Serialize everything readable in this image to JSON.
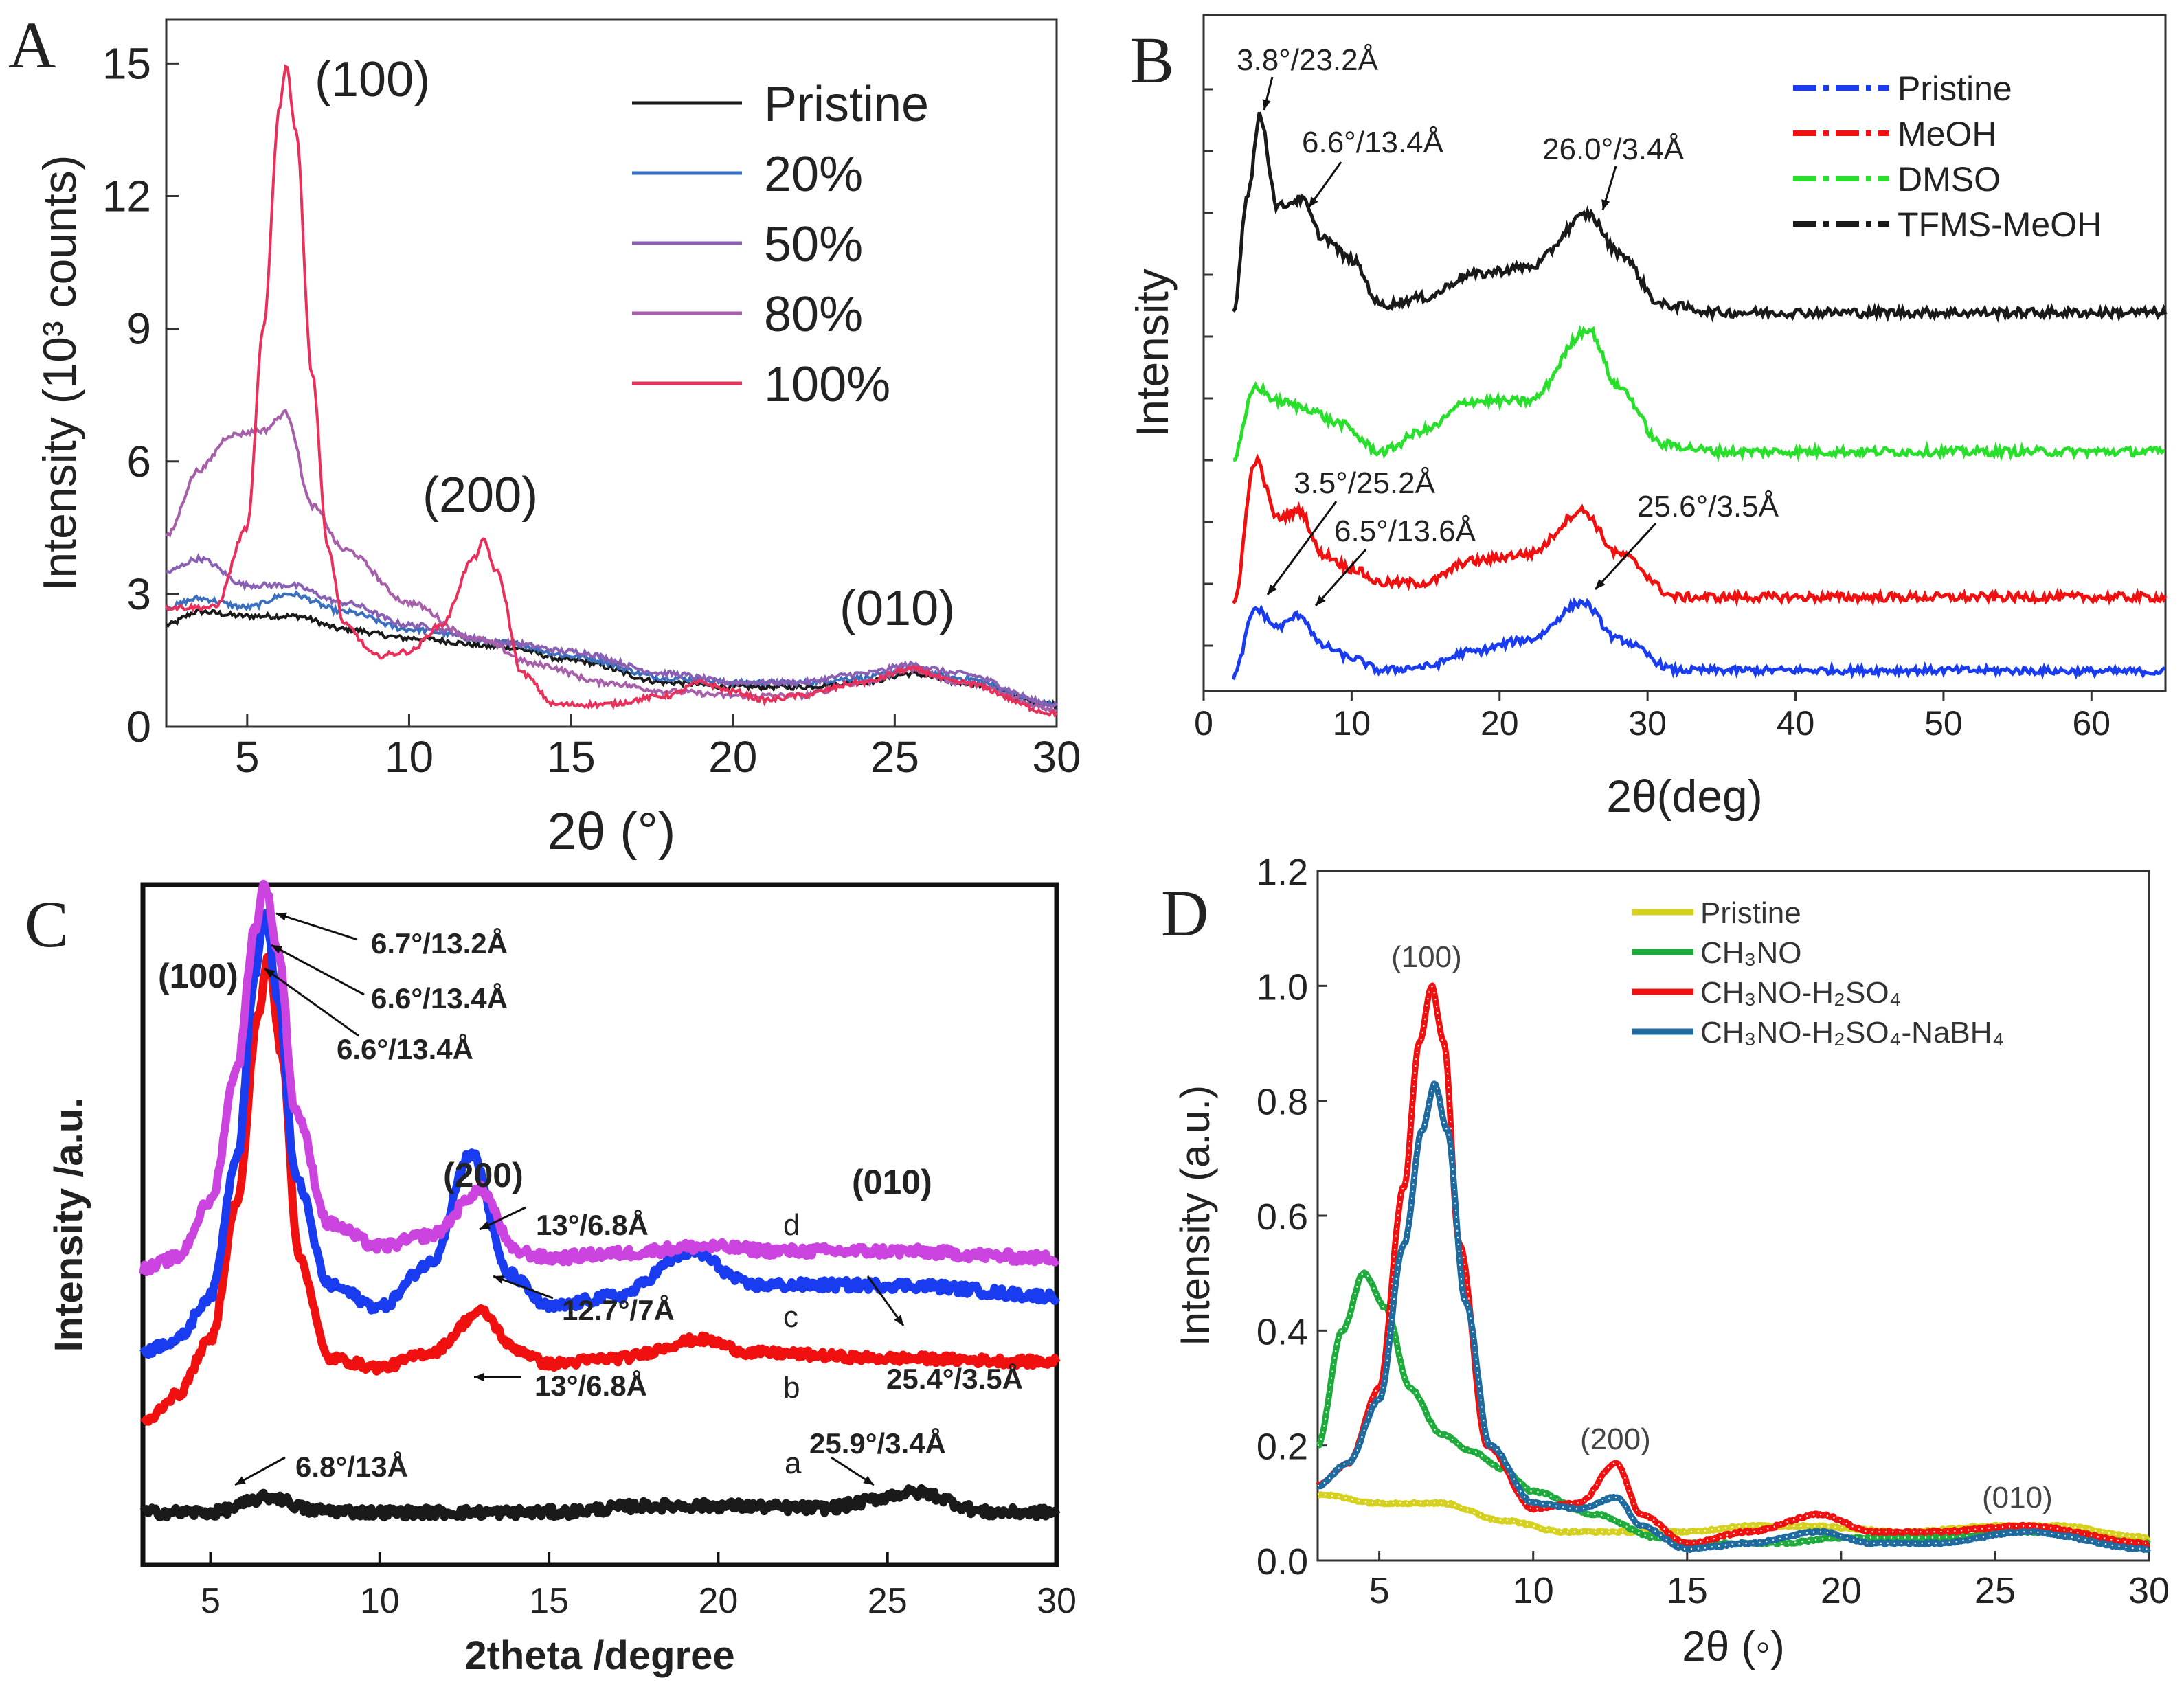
{
  "figure": {
    "panels": [
      "A",
      "B",
      "C",
      "D"
    ],
    "colors": {
      "black": "#1a1a1a",
      "blue20": "#3a6fbf",
      "purple50": "#8a60b4",
      "purple80": "#a65fa8",
      "pink100": "#e8305a",
      "blue": "#1a3cf0",
      "red": "#f01010",
      "green": "#28e02c",
      "magenta": "#cc44e0",
      "olive": "#d6d11e",
      "dgreen": "#1eab3c",
      "dblue": "#1f6ba0"
    }
  },
  "chart_data": [
    {
      "panel": "A",
      "type": "line",
      "xlabel": "2θ (°)",
      "ylabel": "Intensity (10³ counts)",
      "xlim": [
        2.5,
        30
      ],
      "ylim": [
        0,
        16
      ],
      "xticks": [
        5,
        10,
        15,
        20,
        25,
        30
      ],
      "yticks": [
        0,
        3,
        6,
        9,
        12,
        15
      ],
      "legend": [
        "Pristine",
        "20%",
        "50%",
        "80%",
        "100%"
      ],
      "annotations": [
        "(100)",
        "(200)",
        "(010)"
      ],
      "series": [
        {
          "name": "Pristine",
          "color": "black",
          "x": [
            2.5,
            3.5,
            5,
            6.5,
            8,
            10,
            13,
            15,
            18,
            20,
            22,
            24,
            25.5,
            27,
            30
          ],
          "y": [
            2.3,
            2.6,
            2.5,
            2.5,
            2.2,
            2.0,
            1.8,
            1.5,
            1.0,
            0.9,
            0.9,
            1.0,
            1.2,
            1.0,
            0.5
          ]
        },
        {
          "name": "20%",
          "color": "blue20",
          "x": [
            2.5,
            3.5,
            5,
            6.3,
            8,
            10,
            13,
            15,
            18,
            20,
            22,
            24,
            25.5,
            27,
            30
          ],
          "y": [
            2.7,
            2.9,
            2.7,
            3.0,
            2.6,
            2.2,
            1.9,
            1.6,
            1.1,
            1.0,
            1.0,
            1.1,
            1.3,
            1.1,
            0.5
          ]
        },
        {
          "name": "50%",
          "color": "purple50",
          "x": [
            2.5,
            3.5,
            5,
            6.3,
            8,
            10,
            13,
            15,
            18,
            20,
            22,
            24,
            25.5,
            27,
            30
          ],
          "y": [
            3.5,
            3.8,
            3.2,
            3.2,
            2.8,
            2.3,
            1.9,
            1.7,
            1.2,
            1.0,
            1.0,
            1.2,
            1.4,
            1.2,
            0.5
          ]
        },
        {
          "name": "80%",
          "color": "purple80",
          "x": [
            2.5,
            3.5,
            4.5,
            5.5,
            6.2,
            7,
            8,
            10,
            12,
            14,
            16,
            18,
            20,
            22,
            24,
            25.5,
            27,
            30
          ],
          "y": [
            4.3,
            5.8,
            6.6,
            6.7,
            7.1,
            5.0,
            4.0,
            2.8,
            2.0,
            1.4,
            1.0,
            0.8,
            0.7,
            0.7,
            1.0,
            1.3,
            1.0,
            0.4
          ]
        },
        {
          "name": "100%",
          "color": "pink100",
          "x": [
            2.5,
            4,
            5,
            5.5,
            6,
            6.2,
            6.5,
            7,
            7.5,
            8,
            9,
            10,
            11,
            12,
            12.3,
            12.7,
            13.5,
            14.5,
            16,
            18,
            19,
            20,
            21,
            22,
            24,
            25.5,
            27,
            30
          ],
          "y": [
            2.7,
            2.7,
            4.5,
            9.0,
            14.0,
            15.0,
            13.5,
            8.0,
            4.0,
            2.3,
            1.6,
            1.7,
            2.3,
            3.8,
            4.2,
            3.5,
            1.2,
            0.5,
            0.5,
            0.7,
            1.0,
            0.8,
            0.6,
            0.7,
            1.0,
            1.3,
            1.0,
            0.3
          ]
        }
      ]
    },
    {
      "panel": "B",
      "type": "line",
      "xlabel": "2θ(deg)",
      "ylabel": "Intensity",
      "xlim": [
        0,
        65
      ],
      "xticks": [
        0,
        10,
        20,
        30,
        40,
        50,
        60
      ],
      "legend": [
        "Pristine",
        "MeOH",
        "DMSO",
        "TFMS-MeOH"
      ],
      "annotations": [
        "3.8°/23.2Å",
        "6.6°/13.4Å",
        "26.0°/3.4Å",
        "3.5°/25.2Å",
        "6.5°/13.6Å",
        "25.6°/3.5Å"
      ],
      "series": [
        {
          "name": "Pristine",
          "color": "blue",
          "x": [
            2,
            3.5,
            5,
            6.5,
            8,
            10,
            12,
            15,
            18,
            22,
            25.6,
            28,
            32,
            40,
            50,
            65
          ],
          "y": [
            0.0,
            0.55,
            0.4,
            0.5,
            0.25,
            0.15,
            0.05,
            0.08,
            0.2,
            0.3,
            0.6,
            0.3,
            0.05,
            0.05,
            0.05,
            0.04
          ]
        },
        {
          "name": "MeOH",
          "color": "red",
          "x": [
            2,
            3.5,
            5,
            6.5,
            8,
            10,
            12,
            15,
            18,
            22,
            25.6,
            28,
            32,
            40,
            50,
            65
          ],
          "y": [
            0.0,
            1.0,
            0.6,
            0.65,
            0.35,
            0.25,
            0.15,
            0.15,
            0.3,
            0.35,
            0.65,
            0.35,
            0.05,
            0.05,
            0.05,
            0.05
          ]
        },
        {
          "name": "DMSO",
          "color": "green",
          "x": [
            2,
            3.5,
            5,
            7,
            9,
            12,
            15,
            18,
            22,
            26,
            28,
            31,
            35,
            50,
            65
          ],
          "y": [
            0.0,
            0.5,
            0.4,
            0.35,
            0.25,
            0.05,
            0.2,
            0.4,
            0.4,
            0.9,
            0.5,
            0.1,
            0.05,
            0.05,
            0.05
          ]
        },
        {
          "name": "TFMS-MeOH",
          "color": "black",
          "x": [
            2,
            3.0,
            3.8,
            5,
            6.6,
            8,
            10,
            12,
            15,
            18,
            22,
            26,
            28,
            31,
            35,
            50,
            65
          ],
          "y": [
            0.0,
            0.8,
            1.3,
            0.7,
            0.75,
            0.5,
            0.35,
            0.05,
            0.1,
            0.25,
            0.3,
            0.65,
            0.4,
            0.05,
            0.0,
            0.0,
            0.0
          ]
        }
      ]
    },
    {
      "panel": "C",
      "type": "line",
      "xlabel": "2theta /degree",
      "ylabel": "Intensity /a.u.",
      "xlim": [
        3,
        30
      ],
      "xticks": [
        5,
        10,
        15,
        20,
        25,
        30
      ],
      "series_labels": [
        "a",
        "b",
        "c",
        "d"
      ],
      "annotations": [
        "(100)",
        "(200)",
        "(010)",
        "6.7°/13.2Å",
        "6.6°/13.4Å",
        "6.6°/13.4Å",
        "13°/6.8Å",
        "12.7°/7Å",
        "13°/6.8Å",
        "25.4°/3.5Å",
        "6.8°/13Å",
        "25.9°/3.4Å"
      ],
      "series": [
        {
          "name": "a",
          "color": "black",
          "x": [
            3,
            5,
            6.8,
            8,
            10,
            13,
            15,
            18,
            20,
            23,
            25.9,
            28,
            30
          ],
          "y": [
            0.05,
            0.05,
            0.12,
            0.06,
            0.05,
            0.05,
            0.05,
            0.08,
            0.08,
            0.07,
            0.14,
            0.05,
            0.05
          ]
        },
        {
          "name": "b",
          "color": "red",
          "x": [
            3,
            4,
            5,
            5.8,
            6.4,
            6.7,
            7.1,
            7.6,
            8.5,
            10,
            11.5,
            13,
            14,
            15,
            17,
            19.5,
            21,
            25,
            30
          ],
          "y": [
            0.0,
            0.15,
            0.45,
            1.2,
            2.2,
            2.5,
            2.0,
            0.9,
            0.35,
            0.3,
            0.38,
            0.6,
            0.4,
            0.32,
            0.35,
            0.45,
            0.38,
            0.35,
            0.33
          ]
        },
        {
          "name": "c",
          "color": "blue",
          "x": [
            3,
            4,
            5,
            5.8,
            6.3,
            6.6,
            7.0,
            7.5,
            8.5,
            10,
            11.5,
            12.7,
            13.8,
            15,
            17,
            19.2,
            21,
            25.4,
            30
          ],
          "y": [
            0.0,
            0.05,
            0.25,
            0.9,
            1.7,
            2.0,
            1.6,
            0.8,
            0.3,
            0.2,
            0.4,
            0.9,
            0.35,
            0.2,
            0.25,
            0.45,
            0.3,
            0.3,
            0.25
          ]
        },
        {
          "name": "d",
          "color": "magenta",
          "x": [
            3,
            4,
            5,
            5.8,
            6.3,
            6.6,
            7.0,
            7.5,
            8.5,
            10,
            11.5,
            13,
            14,
            15,
            17,
            19.5,
            22,
            25,
            30
          ],
          "y": [
            0.0,
            0.05,
            0.3,
            0.9,
            1.5,
            1.7,
            1.4,
            0.7,
            0.2,
            0.1,
            0.15,
            0.35,
            0.08,
            0.05,
            0.07,
            0.1,
            0.08,
            0.08,
            0.05
          ]
        }
      ]
    },
    {
      "panel": "D",
      "type": "line",
      "xlabel": "2θ (◦)",
      "ylabel": "Intensity (a.u.)",
      "xlim": [
        3,
        30
      ],
      "ylim": [
        0.0,
        1.2
      ],
      "xticks": [
        5,
        10,
        15,
        20,
        25,
        30
      ],
      "yticks": [
        0.0,
        0.2,
        0.4,
        0.6,
        0.8,
        1.0,
        1.2
      ],
      "legend": [
        "Pristine",
        "CH₃NO",
        "CH₃NO-H₂SO₄",
        "CH₃NO-H₂SO₄-NaBH₄"
      ],
      "annotations": [
        "(100)",
        "(200)",
        "(010)"
      ],
      "series": [
        {
          "name": "Pristine",
          "color": "olive",
          "x": [
            3,
            5,
            7,
            9,
            11,
            13,
            15,
            17,
            19,
            22,
            25,
            27,
            30
          ],
          "y": [
            0.115,
            0.1,
            0.1,
            0.07,
            0.05,
            0.05,
            0.05,
            0.06,
            0.06,
            0.05,
            0.06,
            0.06,
            0.04
          ]
        },
        {
          "name": "CH₃NO",
          "color": "dgreen",
          "x": [
            3,
            3.8,
            4.5,
            5.2,
            6,
            7,
            8,
            9,
            10,
            12,
            14,
            15,
            18,
            20,
            23,
            26,
            30
          ],
          "y": [
            0.2,
            0.4,
            0.5,
            0.44,
            0.3,
            0.22,
            0.19,
            0.16,
            0.12,
            0.08,
            0.04,
            0.03,
            0.03,
            0.04,
            0.04,
            0.05,
            0.03
          ]
        },
        {
          "name": "CH₃NO-H₂SO₄",
          "color": "red",
          "x": [
            3,
            4,
            5,
            5.8,
            6.3,
            6.7,
            7.1,
            7.6,
            8.5,
            10,
            11.5,
            12.7,
            13.5,
            15,
            17,
            19.3,
            21,
            23,
            26,
            30
          ],
          "y": [
            0.13,
            0.17,
            0.3,
            0.65,
            0.9,
            1.0,
            0.9,
            0.55,
            0.2,
            0.09,
            0.1,
            0.17,
            0.08,
            0.03,
            0.05,
            0.08,
            0.05,
            0.05,
            0.06,
            0.03
          ]
        },
        {
          "name": "CH₃NO-H₂SO₄-NaBH₄",
          "color": "dblue",
          "x": [
            3,
            4,
            5,
            5.8,
            6.4,
            6.8,
            7.2,
            7.8,
            8.6,
            10,
            11.5,
            12.7,
            13.5,
            15,
            17,
            19.3,
            21,
            23,
            26,
            30
          ],
          "y": [
            0.13,
            0.17,
            0.28,
            0.55,
            0.75,
            0.83,
            0.75,
            0.45,
            0.2,
            0.1,
            0.09,
            0.11,
            0.06,
            0.02,
            0.03,
            0.05,
            0.03,
            0.03,
            0.05,
            0.02
          ]
        }
      ]
    }
  ]
}
